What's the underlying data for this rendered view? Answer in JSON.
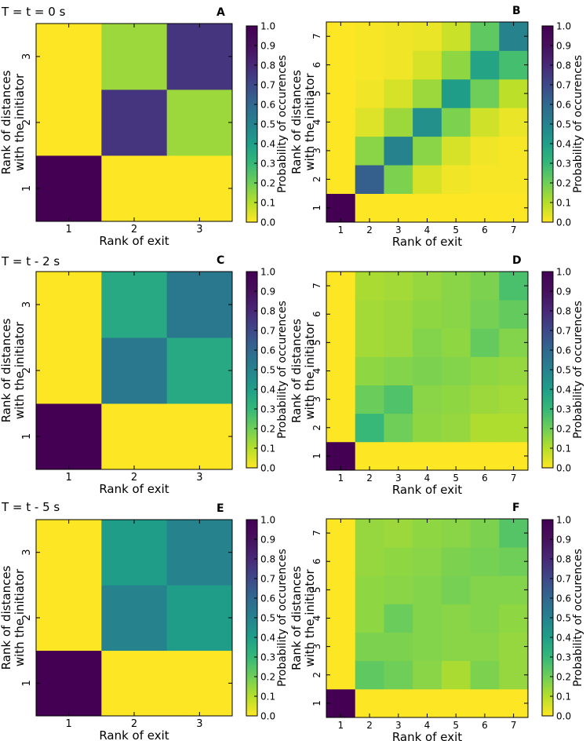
{
  "figure": {
    "row_titles": [
      "T = t = 0 s",
      "T = t - 2 s",
      "T = t - 5 s"
    ],
    "xlabel": "Rank of exit",
    "ylabel_line1": "Rank of distances",
    "ylabel_line2": "with the initiator",
    "colorbar_label": "Probability of occurences",
    "colorbar_ticks": [
      "0.0",
      "0.1",
      "0.2",
      "0.3",
      "0.4",
      "0.5",
      "0.6",
      "0.7",
      "0.8",
      "0.9",
      "1.0"
    ],
    "colormap": "viridis_r",
    "colors": {
      "low": "#fde725",
      "high": "#440154"
    }
  },
  "chart_data": [
    {
      "panel": "A",
      "type": "heatmap",
      "n": 3,
      "x": [
        1,
        2,
        3
      ],
      "y": [
        1,
        2,
        3
      ],
      "vmin": 0,
      "vmax": 1,
      "xlabel": "Rank of exit",
      "ylabel": "Rank of distances with the initiator",
      "colorbar_label": "Probability of occurences",
      "values": [
        [
          1.0,
          0.0,
          0.0
        ],
        [
          0.0,
          0.85,
          0.15
        ],
        [
          0.0,
          0.15,
          0.85
        ]
      ]
    },
    {
      "panel": "B",
      "type": "heatmap",
      "n": 7,
      "x": [
        1,
        2,
        3,
        4,
        5,
        6,
        7
      ],
      "y": [
        1,
        2,
        3,
        4,
        5,
        6,
        7
      ],
      "vmin": 0,
      "vmax": 1,
      "xlabel": "Rank of exit",
      "ylabel": "Rank of distances with the initiator",
      "colorbar_label": "Probability of occurences",
      "values": [
        [
          1.0,
          0.0,
          0.0,
          0.0,
          0.0,
          0.0,
          0.0
        ],
        [
          0.0,
          0.7,
          0.2,
          0.06,
          0.02,
          0.01,
          0.01
        ],
        [
          0.0,
          0.18,
          0.55,
          0.18,
          0.06,
          0.02,
          0.01
        ],
        [
          0.0,
          0.05,
          0.15,
          0.5,
          0.2,
          0.07,
          0.03
        ],
        [
          0.0,
          0.02,
          0.06,
          0.15,
          0.45,
          0.22,
          0.1
        ],
        [
          0.0,
          0.01,
          0.02,
          0.06,
          0.17,
          0.42,
          0.3
        ],
        [
          0.0,
          0.01,
          0.02,
          0.03,
          0.08,
          0.25,
          0.55
        ]
      ]
    },
    {
      "panel": "C",
      "type": "heatmap",
      "n": 3,
      "x": [
        1,
        2,
        3
      ],
      "y": [
        1,
        2,
        3
      ],
      "vmin": 0,
      "vmax": 1,
      "xlabel": "Rank of exit",
      "ylabel": "Rank of distances with the initiator",
      "colorbar_label": "Probability of occurences",
      "values": [
        [
          1.0,
          0.0,
          0.0
        ],
        [
          0.0,
          0.6,
          0.4
        ],
        [
          0.0,
          0.4,
          0.6
        ]
      ]
    },
    {
      "panel": "D",
      "type": "heatmap",
      "n": 7,
      "x": [
        1,
        2,
        3,
        4,
        5,
        6,
        7
      ],
      "y": [
        1,
        2,
        3,
        4,
        5,
        6,
        7
      ],
      "vmin": 0,
      "vmax": 1,
      "xlabel": "Rank of exit",
      "ylabel": "Rank of distances with the initiator",
      "colorbar_label": "Probability of occurences",
      "values": [
        [
          1.0,
          0.0,
          0.0,
          0.0,
          0.0,
          0.0,
          0.0
        ],
        [
          0.0,
          0.33,
          0.22,
          0.17,
          0.16,
          0.12,
          0.12
        ],
        [
          0.0,
          0.23,
          0.28,
          0.18,
          0.17,
          0.15,
          0.14
        ],
        [
          0.0,
          0.17,
          0.19,
          0.2,
          0.19,
          0.17,
          0.16
        ],
        [
          0.0,
          0.14,
          0.15,
          0.19,
          0.17,
          0.24,
          0.19
        ],
        [
          0.0,
          0.14,
          0.15,
          0.17,
          0.18,
          0.21,
          0.24
        ],
        [
          0.0,
          0.13,
          0.14,
          0.16,
          0.18,
          0.2,
          0.29
        ]
      ]
    },
    {
      "panel": "E",
      "type": "heatmap",
      "n": 3,
      "x": [
        1,
        2,
        3
      ],
      "y": [
        1,
        2,
        3
      ],
      "vmin": 0,
      "vmax": 1,
      "xlabel": "Rank of exit",
      "ylabel": "Rank of distances with the initiator",
      "colorbar_label": "Probability of occurences",
      "values": [
        [
          1.0,
          0.0,
          0.0
        ],
        [
          0.0,
          0.55,
          0.45
        ],
        [
          0.0,
          0.45,
          0.55
        ]
      ]
    },
    {
      "panel": "F",
      "type": "heatmap",
      "n": 7,
      "x": [
        1,
        2,
        3,
        4,
        5,
        6,
        7
      ],
      "y": [
        1,
        2,
        3,
        4,
        5,
        6,
        7
      ],
      "vmin": 0,
      "vmax": 1,
      "xlabel": "Rank of exit",
      "ylabel": "Rank of distances with the initiator",
      "colorbar_label": "Probability of occurences",
      "values": [
        [
          1.0,
          0.0,
          0.0,
          0.0,
          0.0,
          0.0,
          0.0
        ],
        [
          0.0,
          0.25,
          0.22,
          0.18,
          0.13,
          0.2,
          0.16
        ],
        [
          0.0,
          0.2,
          0.2,
          0.19,
          0.18,
          0.18,
          0.16
        ],
        [
          0.0,
          0.17,
          0.23,
          0.19,
          0.18,
          0.19,
          0.17
        ],
        [
          0.0,
          0.17,
          0.18,
          0.19,
          0.21,
          0.19,
          0.19
        ],
        [
          0.0,
          0.16,
          0.17,
          0.18,
          0.2,
          0.21,
          0.22
        ],
        [
          0.0,
          0.16,
          0.15,
          0.17,
          0.18,
          0.2,
          0.27
        ]
      ]
    }
  ]
}
